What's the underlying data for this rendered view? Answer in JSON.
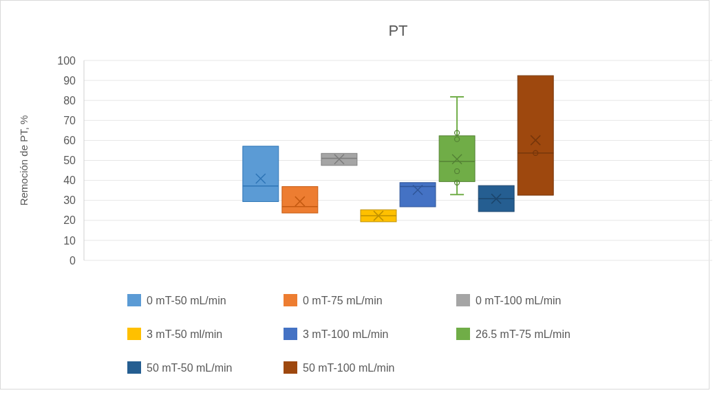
{
  "chart_data": {
    "type": "box",
    "title": "PT",
    "ylabel": "Remoción de PT, %",
    "categories": [
      null
    ],
    "ylim": [
      0,
      100
    ],
    "yticks": [
      0,
      10,
      20,
      30,
      40,
      50,
      60,
      70,
      80,
      90,
      100
    ],
    "grid": "y",
    "legend": "bottom",
    "series": [
      {
        "name": "0 mT-50 mL/min",
        "color": "#5b9bd5",
        "boxes": [
          {
            "low": 29.4,
            "q1": 29.4,
            "median": 37.2,
            "q3": 57.1,
            "high": 57.1,
            "mean": 40.9
          }
        ]
      },
      {
        "name": "0 mT-75 mL/min",
        "color": "#ed7d31",
        "boxes": [
          {
            "low": 23.7,
            "q1": 23.7,
            "median": 26.9,
            "q3": 36.9,
            "high": 36.9,
            "mean": 29.5
          }
        ]
      },
      {
        "name": "0 mT-100 mL/min",
        "color": "#a5a5a5",
        "boxes": [
          {
            "low": 47.5,
            "q1": 47.5,
            "median": 51,
            "q3": 53.5,
            "high": 53.5,
            "mean": 50.6
          }
        ]
      },
      {
        "name": "3 mT-50 ml/min",
        "color": "#ffc000",
        "boxes": [
          {
            "low": 19.3,
            "q1": 19.3,
            "median": 22.3,
            "q3": 25.3,
            "high": 25.3,
            "mean": 22.3
          }
        ]
      },
      {
        "name": "3 mT-100 mL/min",
        "color": "#4472c4",
        "boxes": [
          {
            "low": 26.8,
            "q1": 26.8,
            "median": 36.9,
            "q3": 38.9,
            "high": 38.9,
            "mean": 35.2
          }
        ]
      },
      {
        "name": "26.5 mT-75 mL/min",
        "color": "#70ad47",
        "boxes": [
          {
            "low": 32.9,
            "q1": 39.4,
            "median": 49.5,
            "q3": 62.3,
            "high": 81.8,
            "mean": 50.6,
            "outliers": [
              63.8,
              60.6,
              44.6,
              38.9
            ]
          }
        ]
      },
      {
        "name": "50 mT-50 mL/min",
        "color": "#255e91",
        "boxes": [
          {
            "low": 24.4,
            "q1": 24.4,
            "median": 30.8,
            "q3": 37.4,
            "high": 37.4,
            "mean": 30.8
          }
        ]
      },
      {
        "name": "50 mT-100 mL/min",
        "color": "#9e480e",
        "boxes": [
          {
            "low": 32.6,
            "q1": 32.6,
            "median": 53.7,
            "q3": 92.4,
            "high": 92.4,
            "mean": 60.1,
            "outliers": [
              53.7
            ]
          }
        ]
      }
    ]
  }
}
